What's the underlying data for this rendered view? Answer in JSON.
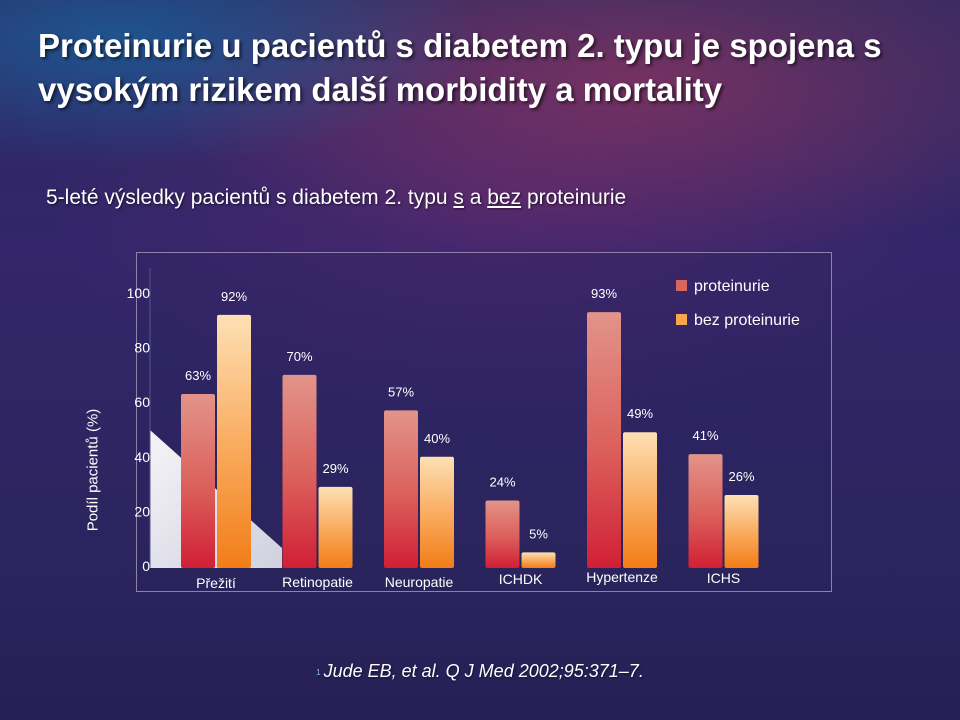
{
  "title": "Proteinurie u pacientů s diabetem 2. typu je spojena s vysokým rizikem další morbidity a mortality",
  "subtitle": {
    "pre": "5-leté výsledky pacientů s diabetem 2. typu ",
    "s": "s",
    "mid": " a ",
    "bez": "bez",
    "post": " proteinurie"
  },
  "citation": "Jude EB, et al. Q J Med 2002;95:371–7.",
  "citation_mark": "1",
  "colors": {
    "proteinuria": "#d9655f",
    "no_proteinuria": "#f7a64e"
  },
  "chart_data": {
    "type": "bar",
    "ylabel": "Podíl pacientů (%)",
    "xlabel": "",
    "ylim": [
      0,
      100
    ],
    "yticks": [
      "0",
      "20",
      "40",
      "60",
      "80",
      "100"
    ],
    "legend_position": "top-right",
    "categories": [
      "Přežití",
      "Retinopatie",
      "Neuropatie",
      "ICHDK",
      "Hypertenze",
      "ICHS"
    ],
    "series": [
      {
        "name": "proteinurie",
        "values": [
          63,
          70,
          57,
          24,
          93,
          41
        ],
        "labels": [
          "63%",
          "70%",
          "57%",
          "24%",
          "93%",
          "41%"
        ]
      },
      {
        "name": "bez proteinurie",
        "values": [
          92,
          29,
          40,
          5,
          49,
          26
        ],
        "labels": [
          "92%",
          "29%",
          "40%",
          "5%",
          "49%",
          "26%"
        ]
      }
    ]
  }
}
